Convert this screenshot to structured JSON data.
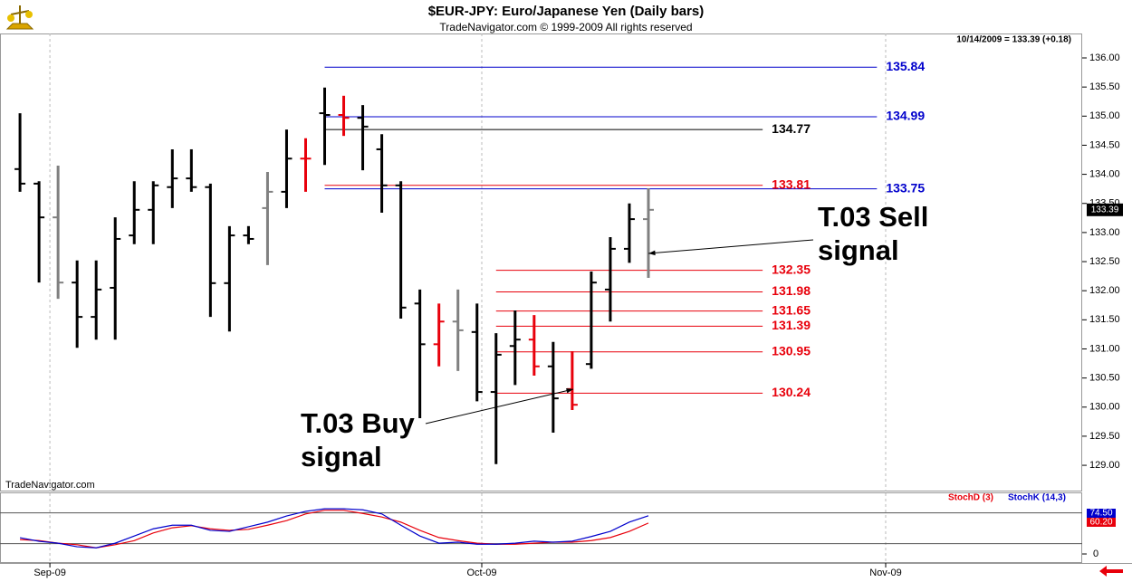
{
  "chart_data": [
    {
      "type": "ohlc",
      "title": "$EUR-JPY:  Euro/Japanese Yen  (Daily bars)",
      "subtitle": "TradeNavigator.com © 1999-2009 All rights reserved",
      "header_info": "10/14/2009 = 133.39 (+0.18)",
      "watermark": "TradeNavigator.com",
      "x": [
        0,
        1,
        2,
        3,
        4,
        5,
        6,
        7,
        8,
        9,
        10,
        11,
        12,
        13,
        14,
        15,
        16,
        17,
        18,
        19,
        20,
        21,
        22,
        23,
        24,
        25,
        26,
        27,
        28,
        29,
        30,
        31,
        32,
        33
      ],
      "open": [
        134.09,
        133.84,
        133.26,
        132.14,
        131.55,
        132.05,
        132.95,
        133.39,
        133.78,
        133.93,
        133.78,
        132.13,
        132.95,
        133.42,
        133.7,
        134.27,
        135.05,
        135.02,
        134.97,
        134.43,
        133.81,
        131.78,
        131.08,
        131.47,
        131.29,
        130.26,
        131.05,
        131.16,
        130.7,
        130.31,
        130.74,
        132.02,
        132.72,
        133.23
      ],
      "high": [
        135.05,
        133.88,
        134.15,
        132.52,
        132.52,
        133.26,
        133.88,
        133.88,
        134.43,
        134.43,
        133.84,
        133.11,
        133.11,
        134.04,
        134.77,
        134.62,
        135.49,
        135.35,
        135.19,
        134.69,
        133.88,
        132.02,
        131.78,
        132.02,
        131.78,
        131.27,
        131.66,
        131.58,
        131.12,
        130.96,
        132.33,
        132.92,
        133.5,
        133.76
      ],
      "low": [
        133.7,
        132.14,
        131.86,
        131.02,
        131.16,
        131.16,
        132.8,
        132.8,
        133.42,
        133.7,
        131.55,
        131.3,
        132.8,
        132.44,
        133.42,
        133.7,
        134.16,
        134.66,
        134.07,
        133.34,
        131.52,
        129.81,
        130.7,
        130.62,
        130.1,
        129.02,
        130.38,
        130.54,
        129.56,
        129.95,
        130.66,
        131.47,
        132.48,
        132.22
      ],
      "close": [
        133.84,
        133.26,
        132.14,
        131.55,
        132.02,
        132.89,
        133.39,
        133.81,
        133.93,
        133.78,
        132.13,
        132.95,
        132.89,
        133.7,
        134.27,
        134.27,
        135.02,
        134.97,
        134.82,
        133.81,
        131.71,
        131.08,
        131.47,
        131.32,
        130.26,
        130.9,
        131.16,
        130.7,
        130.15,
        130.04,
        132.14,
        132.72,
        133.23,
        133.39
      ],
      "colors": [
        "#000000",
        "#000000",
        "#808080",
        "#000000",
        "#000000",
        "#000000",
        "#000000",
        "#000000",
        "#000000",
        "#000000",
        "#000000",
        "#000000",
        "#000000",
        "#808080",
        "#000000",
        "#e8000b",
        "#000000",
        "#e8000b",
        "#000000",
        "#000000",
        "#000000",
        "#000000",
        "#e8000b",
        "#808080",
        "#000000",
        "#000000",
        "#000000",
        "#e8000b",
        "#000000",
        "#e8000b",
        "#000000",
        "#000000",
        "#000000",
        "#808080"
      ],
      "last_price_label": "133.39",
      "levels": [
        {
          "value": 135.84,
          "color": "#0000cc",
          "from": 16,
          "to": 45
        },
        {
          "value": 134.99,
          "color": "#0000cc",
          "from": 16,
          "to": 45
        },
        {
          "value": 133.75,
          "color": "#0000cc",
          "from": 16,
          "to": 45
        },
        {
          "value": 134.77,
          "color": "#000000",
          "from": 16,
          "to": 39
        },
        {
          "value": 133.81,
          "color": "#e8000b",
          "from": 16,
          "to": 39
        },
        {
          "value": 132.35,
          "color": "#e8000b",
          "from": 25,
          "to": 39
        },
        {
          "value": 131.98,
          "color": "#e8000b",
          "from": 25,
          "to": 39
        },
        {
          "value": 131.65,
          "color": "#e8000b",
          "from": 25,
          "to": 39
        },
        {
          "value": 131.39,
          "color": "#e8000b",
          "from": 25,
          "to": 39
        },
        {
          "value": 130.95,
          "color": "#e8000b",
          "from": 25,
          "to": 39
        },
        {
          "value": 130.24,
          "color": "#e8000b",
          "from": 25,
          "to": 39
        }
      ],
      "annotations": [
        {
          "lines": [
            "T.03 Sell",
            "signal"
          ]
        },
        {
          "lines": [
            "T.03 Buy",
            "signal"
          ]
        }
      ],
      "xlim": [
        -1.05,
        55.78
      ],
      "xticks": [
        {
          "value": 1.57,
          "label": "Sep-09"
        },
        {
          "value": 24.25,
          "label": "Oct-09"
        },
        {
          "value": 45.46,
          "label": "Nov-09"
        }
      ],
      "ylim": [
        128.55,
        136.42
      ],
      "yticks": [
        {
          "value": 129,
          "label": "129.00"
        },
        {
          "value": 129.5,
          "label": "129.50"
        },
        {
          "value": 130,
          "label": "130.00"
        },
        {
          "value": 130.5,
          "label": "130.50"
        },
        {
          "value": 131,
          "label": "131.00"
        },
        {
          "value": 131.5,
          "label": "131.50"
        },
        {
          "value": 132,
          "label": "132.00"
        },
        {
          "value": 132.5,
          "label": "132.50"
        },
        {
          "value": 133,
          "label": "133.00"
        },
        {
          "value": 133.5,
          "label": "133.50"
        },
        {
          "value": 134,
          "label": "134.00"
        },
        {
          "value": 134.5,
          "label": "134.50"
        },
        {
          "value": 135,
          "label": "135.00"
        },
        {
          "value": 135.5,
          "label": "135.50"
        },
        {
          "value": 136,
          "label": "136.00"
        }
      ],
      "grid": true
    },
    {
      "type": "line",
      "x": [
        0,
        1,
        2,
        3,
        4,
        5,
        6,
        7,
        8,
        9,
        10,
        11,
        12,
        13,
        14,
        15,
        16,
        17,
        18,
        19,
        20,
        21,
        22,
        23,
        24,
        25,
        26,
        27,
        28,
        29,
        30,
        31,
        32,
        33
      ],
      "series": [
        {
          "name": "StochD (3)",
          "color": "#e8000b",
          "values": [
            28,
            26,
            21,
            18,
            12,
            18,
            26,
            41,
            51,
            55,
            49,
            46,
            48,
            56,
            65,
            78,
            85,
            85,
            79,
            72,
            62,
            46,
            32,
            26,
            21,
            19,
            19,
            21,
            23,
            23,
            26,
            32,
            44,
            60.2
          ],
          "value_labels": [
            null,
            null,
            null,
            null,
            null,
            null,
            null,
            null,
            null,
            null,
            null,
            null,
            null,
            null,
            null,
            null,
            null,
            null,
            null,
            null,
            null,
            null,
            null,
            null,
            null,
            null,
            null,
            null,
            null,
            null,
            null,
            null,
            null,
            "60.20"
          ]
        },
        {
          "name": "StochK (14,3)",
          "color": "#0000cc",
          "values": [
            31.7,
            24.7,
            21,
            14,
            12,
            21,
            35,
            49,
            56,
            56,
            46,
            44,
            53,
            62,
            74,
            83,
            88,
            88,
            86,
            78,
            56,
            35,
            21,
            23,
            19,
            19,
            21,
            25,
            23,
            25,
            34,
            44,
            62,
            74.5
          ],
          "value_labels": [
            null,
            null,
            null,
            null,
            null,
            null,
            null,
            null,
            null,
            null,
            null,
            null,
            null,
            null,
            null,
            null,
            null,
            null,
            null,
            null,
            null,
            null,
            null,
            null,
            null,
            null,
            null,
            null,
            null,
            null,
            null,
            null,
            null,
            "74.50"
          ]
        }
      ],
      "ref_lines": [
        20,
        80
      ],
      "xlim": [
        -1.05,
        55.78
      ],
      "ylim": [
        -17.6,
        118.2
      ],
      "yticks": [
        0
      ],
      "grid": true
    }
  ]
}
